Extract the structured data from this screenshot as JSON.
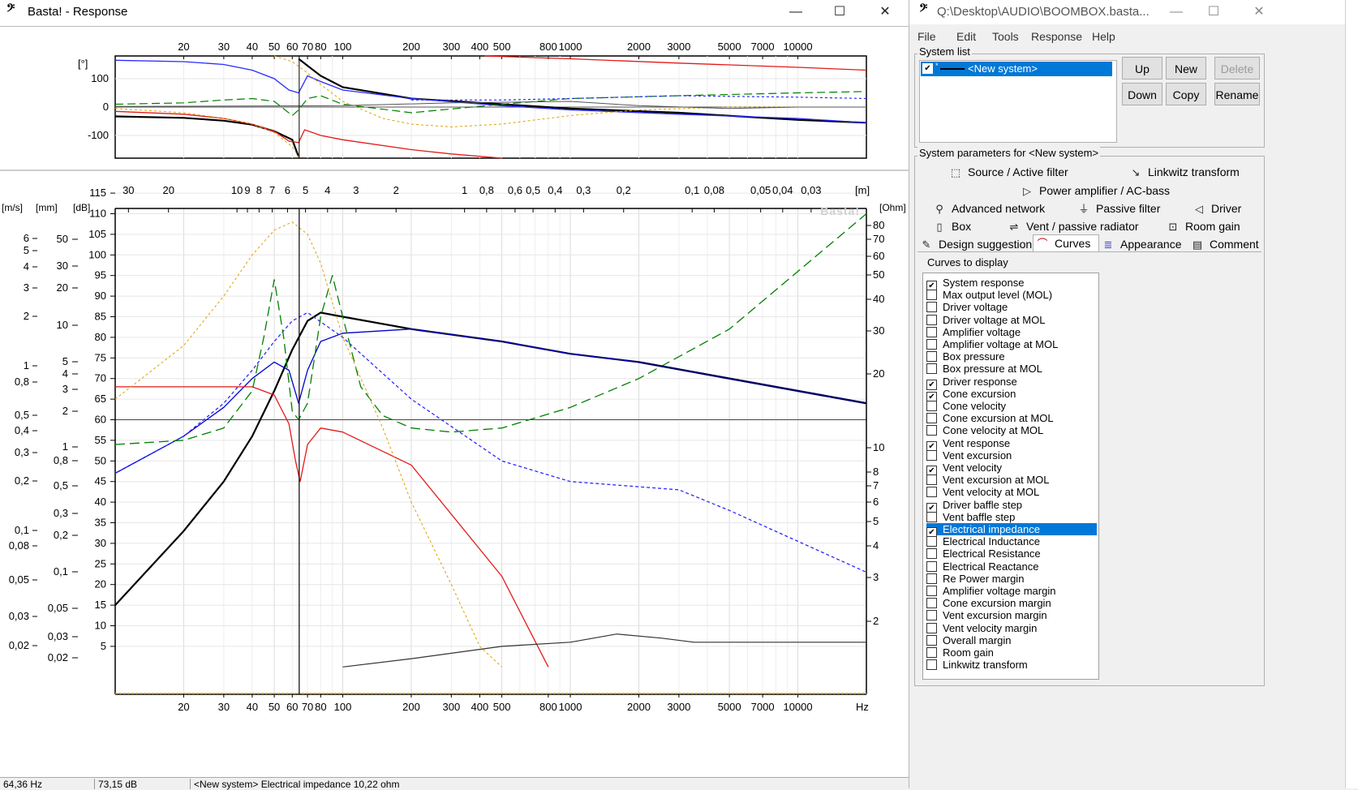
{
  "response_window": {
    "title": "Basta! - Response",
    "icon": "bass-clef-icon",
    "controls": [
      "minimize-icon",
      "maximize-icon",
      "close-icon"
    ]
  },
  "phase_plot": {
    "unit_label": "[°]",
    "y_ticks": [
      "100",
      "0",
      "-100"
    ],
    "x_top_labels": [
      "20",
      "30",
      "40",
      "50",
      "60",
      "70",
      "80",
      "100",
      "200",
      "300",
      "400",
      "500",
      "800",
      "1000",
      "2000",
      "3000",
      "5000",
      "7000",
      "10000"
    ]
  },
  "main_plot": {
    "watermark": "Basta!",
    "top_wavelength_labels": [
      "30",
      "20",
      "10",
      "9",
      "8",
      "7",
      "6",
      "5",
      "4",
      "3",
      "2",
      "1",
      "0,8",
      "0,6",
      "0,5",
      "0,4",
      "0,3",
      "0,2",
      "0,1",
      "0,08",
      "0,05",
      "0,04",
      "0,03"
    ],
    "top_unit": "[m]",
    "axis_units": [
      "[m/s]",
      "[mm]",
      "[dB]",
      "[Ohm]"
    ],
    "db_ticks": [
      "115",
      "110",
      "105",
      "100",
      "95",
      "90",
      "85",
      "80",
      "75",
      "70",
      "65",
      "60",
      "55",
      "50",
      "45",
      "40",
      "35",
      "30",
      "25",
      "20",
      "15",
      "10",
      "5"
    ],
    "mm_ticks": [
      "50",
      "30",
      "20",
      "10",
      "5",
      "4",
      "3",
      "2",
      "1",
      "0,8",
      "0,5",
      "0,3",
      "0,2",
      "0,1",
      "0,05",
      "0,03",
      "0,02"
    ],
    "ms_ticks": [
      "6",
      "5",
      "4",
      "3",
      "2",
      "1",
      "0,8",
      "0,5",
      "0,4",
      "0,3",
      "0,2",
      "0,1",
      "0,08",
      "0,05",
      "0,03",
      "0,02"
    ],
    "ohm_ticks": [
      "80",
      "70",
      "60",
      "50",
      "40",
      "30",
      "20",
      "10",
      "8",
      "7",
      "6",
      "5",
      "4",
      "3",
      "2"
    ],
    "x_bottom_labels": [
      "20",
      "30",
      "40",
      "50",
      "60",
      "70",
      "80",
      "100",
      "200",
      "300",
      "400",
      "500",
      "800",
      "1000",
      "2000",
      "3000",
      "5000",
      "7000",
      "10000"
    ],
    "x_unit": "Hz",
    "cursor_freq_hz": 64.36
  },
  "chart_data": {
    "type": "line",
    "xscale": "log",
    "xlim": [
      10,
      20000
    ],
    "ylabel": "[dB]",
    "ylim": [
      0,
      120
    ],
    "grid": true,
    "series": [
      {
        "color": "#000000",
        "x": [
          10,
          20,
          30,
          40,
          50,
          60,
          70,
          80,
          100,
          200,
          500,
          1000,
          2000,
          5000,
          20000
        ],
        "values": [
          15,
          33,
          45,
          56,
          67,
          77,
          84,
          86,
          85,
          82,
          79,
          76,
          74,
          70,
          64
        ]
      },
      {
        "color": "#0000cc",
        "x": [
          10,
          20,
          30,
          40,
          50,
          58,
          64,
          70,
          80,
          100,
          200,
          500,
          1000,
          2000,
          5000,
          20000
        ],
        "values": [
          47,
          56,
          63,
          70,
          74,
          72,
          64,
          72,
          79,
          81,
          82,
          79,
          76,
          74,
          70,
          64
        ]
      },
      {
        "color": "#e31a1a",
        "x": [
          10,
          20,
          30,
          40,
          50,
          58,
          62,
          65,
          70,
          80,
          100,
          200,
          500,
          800
        ],
        "values": [
          68,
          68,
          68,
          68,
          66,
          59,
          50,
          45,
          54,
          58,
          57,
          49,
          22,
          0
        ]
      },
      {
        "color": "#2a2aff",
        "x": [
          10,
          20,
          30,
          40,
          50,
          60,
          70,
          100,
          200,
          500,
          1000,
          3000,
          5000,
          20000
        ],
        "values": [
          47,
          56,
          64,
          72,
          79,
          84,
          86,
          80,
          65,
          50,
          45,
          43,
          38,
          23
        ]
      },
      {
        "color": "#008000",
        "x": [
          10,
          20,
          30,
          40,
          45,
          50,
          55,
          60,
          64,
          70,
          80,
          90,
          100,
          120,
          150,
          200,
          300,
          500,
          1000,
          2000,
          5000,
          20000
        ],
        "values": [
          54,
          55,
          58,
          67,
          80,
          94,
          80,
          62,
          60,
          64,
          85,
          95,
          85,
          68,
          61,
          58,
          57,
          58,
          63,
          70,
          82,
          110
        ]
      },
      {
        "color": "#e0a000",
        "x": [
          10,
          20,
          30,
          40,
          50,
          60,
          70,
          80,
          100,
          150,
          200,
          300,
          400,
          500
        ],
        "values": [
          65,
          78,
          90,
          100,
          106,
          108,
          105,
          98,
          80,
          58,
          40,
          20,
          5,
          0
        ]
      },
      {
        "color": "#333333",
        "x": [
          100,
          200,
          500,
          1000,
          1600,
          2500,
          3500,
          10000,
          20000
        ],
        "values": [
          0,
          2,
          5,
          6,
          8,
          7,
          6,
          6,
          6
        ]
      }
    ]
  },
  "status": {
    "freq": "64,36 Hz",
    "value": "73,15 dB",
    "message": "<New system>  Electrical impedance 10,22 ohm"
  },
  "main_window": {
    "title": "Q:\\Desktop\\AUDIO\\BOOMBOX.basta...",
    "icon": "bass-clef-icon",
    "menu": [
      "File",
      "Edit",
      "Tools",
      "Response",
      "Help"
    ],
    "system_list_label": "System list",
    "system_item": "<New system>",
    "buttons": {
      "up": "Up",
      "new": "New",
      "delete": "Delete",
      "down": "Down",
      "copy": "Copy",
      "rename": "Rename"
    },
    "params_label": "System parameters for <New system>",
    "tabs": [
      {
        "label": "Source / Active filter",
        "icon": "source-icon"
      },
      {
        "label": "Linkwitz transform",
        "icon": "linkwitz-icon"
      },
      {
        "label": "Power amplifier / AC-bass",
        "icon": "amplifier-icon"
      },
      {
        "label": "Advanced network",
        "icon": "network-icon"
      },
      {
        "label": "Passive filter",
        "icon": "filter-icon"
      },
      {
        "label": "Driver",
        "icon": "speaker-icon"
      },
      {
        "label": "Box",
        "icon": "box-icon"
      },
      {
        "label": "Vent / passive radiator",
        "icon": "vent-icon"
      },
      {
        "label": "Room gain",
        "icon": "room-icon"
      },
      {
        "label": "Design suggestion",
        "icon": "pencil-icon"
      },
      {
        "label": "Curves",
        "icon": "curve-icon"
      },
      {
        "label": "Appearance",
        "icon": "appearance-icon"
      },
      {
        "label": "Comment",
        "icon": "comment-icon"
      }
    ],
    "curves_label": "Curves to display",
    "curves": [
      {
        "label": "System response",
        "checked": true
      },
      {
        "label": "Max output level (MOL)",
        "checked": false
      },
      {
        "label": "Driver voltage",
        "checked": false
      },
      {
        "label": "Driver voltage at MOL",
        "checked": false
      },
      {
        "label": "Amplifier voltage",
        "checked": false
      },
      {
        "label": "Amplifier voltage at MOL",
        "checked": false
      },
      {
        "label": "Box pressure",
        "checked": false
      },
      {
        "label": "Box pressure at MOL",
        "checked": false
      },
      {
        "label": "Driver response",
        "checked": true
      },
      {
        "label": "Cone excursion",
        "checked": true
      },
      {
        "label": "Cone velocity",
        "checked": false
      },
      {
        "label": "Cone excursion at MOL",
        "checked": false
      },
      {
        "label": "Cone velocity at MOL",
        "checked": false
      },
      {
        "label": "Vent response",
        "checked": true
      },
      {
        "label": "Vent excursion",
        "checked": false
      },
      {
        "label": "Vent velocity",
        "checked": true
      },
      {
        "label": "Vent excursion at MOL",
        "checked": false
      },
      {
        "label": "Vent velocity at MOL",
        "checked": false
      },
      {
        "label": "Driver baffle step",
        "checked": true
      },
      {
        "label": "Vent baffle step",
        "checked": false
      },
      {
        "label": "Electrical impedance",
        "checked": true,
        "selected": true
      },
      {
        "label": "Electrical Inductance",
        "checked": false
      },
      {
        "label": "Electrical Resistance",
        "checked": false
      },
      {
        "label": "Electrical Reactance",
        "checked": false
      },
      {
        "label": "Re Power margin",
        "checked": false
      },
      {
        "label": "Amplifier voltage margin",
        "checked": false
      },
      {
        "label": "Cone excursion margin",
        "checked": false
      },
      {
        "label": "Vent excursion margin",
        "checked": false
      },
      {
        "label": "Vent velocity margin",
        "checked": false
      },
      {
        "label": "Overall margin",
        "checked": false
      },
      {
        "label": "Room gain",
        "checked": false
      },
      {
        "label": "Linkwitz transform",
        "checked": false
      }
    ]
  }
}
